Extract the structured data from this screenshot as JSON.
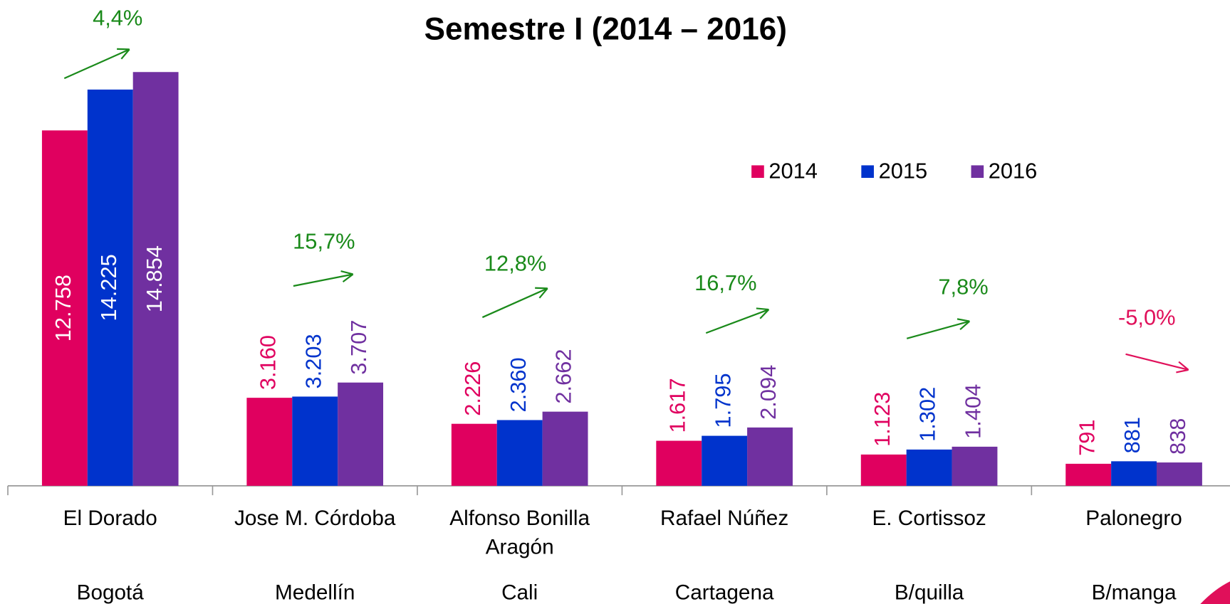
{
  "chart_data": {
    "type": "bar",
    "title": "Semestre I  (2014 – 2016)",
    "categories": [
      "El Dorado",
      "Jose M. Córdoba",
      "Alfonso Bonilla Aragón",
      "Rafael Núñez",
      "E. Cortissoz",
      "Palonegro"
    ],
    "cities": [
      "Bogotá",
      "Medellín",
      "Cali",
      "Cartagena",
      "B/quilla",
      "B/manga"
    ],
    "series": [
      {
        "name": "2014",
        "color": "#e0005f",
        "values": [
          12758,
          3160,
          2226,
          1617,
          1123,
          791
        ],
        "value_labels": [
          "12.758",
          "3.160",
          "2.226",
          "1.617",
          "1.123",
          "791"
        ]
      },
      {
        "name": "2015",
        "color": "#0033cc",
        "values": [
          14225,
          3203,
          2360,
          1795,
          1302,
          881
        ],
        "value_labels": [
          "14.225",
          "3.203",
          "2.360",
          "1.795",
          "1.302",
          "881"
        ]
      },
      {
        "name": "2016",
        "color": "#7030a0",
        "values": [
          14854,
          3707,
          2662,
          2094,
          1404,
          838
        ],
        "value_labels": [
          "14.854",
          "3.707",
          "2.662",
          "2.094",
          "1.404",
          "838"
        ]
      }
    ],
    "ylim": [
      0,
      17440
    ],
    "legend": "upper right",
    "annotations": [
      {
        "text": "4,4%",
        "color": "#1a8a1a",
        "trend": "up"
      },
      {
        "text": "15,7%",
        "color": "#1a8a1a",
        "trend": "up"
      },
      {
        "text": "12,8%",
        "color": "#1a8a1a",
        "trend": "up"
      },
      {
        "text": "16,7%",
        "color": "#1a8a1a",
        "trend": "up"
      },
      {
        "text": "7,8%",
        "color": "#1a8a1a",
        "trend": "up"
      },
      {
        "text": "-5,0%",
        "color": "#e0105a",
        "trend": "down"
      }
    ]
  }
}
